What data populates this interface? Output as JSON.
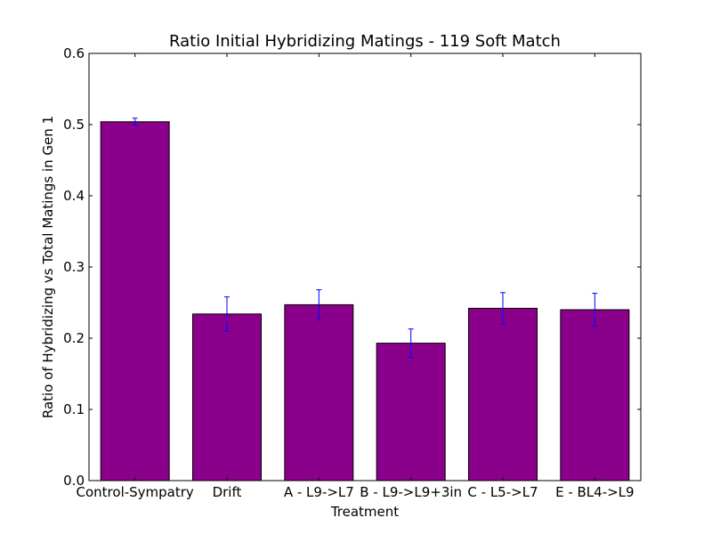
{
  "chart_data": {
    "type": "bar",
    "title": "Ratio Initial Hybridizing Matings - 119 Soft Match",
    "xlabel": "Treatment",
    "ylabel": "Ratio of Hybridizing vs Total Matings in Gen 1",
    "categories": [
      "Control-Sympatry",
      "Drift",
      "A - L9->L7",
      "B - L9->L9+3in",
      "C - L5->L7",
      "E - BL4->L9"
    ],
    "values": [
      0.504,
      0.234,
      0.247,
      0.193,
      0.242,
      0.24
    ],
    "errors": [
      0.005,
      0.024,
      0.021,
      0.02,
      0.022,
      0.023
    ],
    "ylim": [
      0,
      0.6
    ],
    "yticks": [
      "0.0",
      "0.1",
      "0.2",
      "0.3",
      "0.4",
      "0.5",
      "0.6"
    ],
    "grid": false,
    "colors": {
      "bar": "#8b008b",
      "error_bar": "#0000ff",
      "edge": "#000000"
    }
  }
}
